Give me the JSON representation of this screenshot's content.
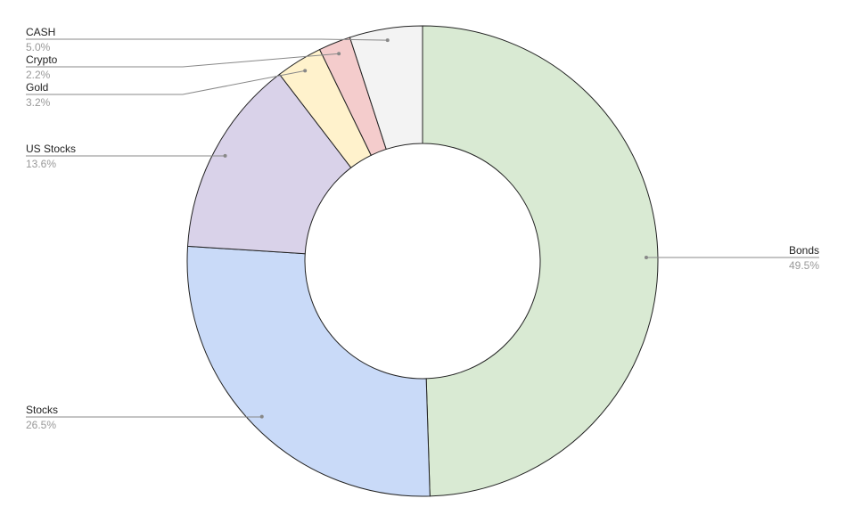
{
  "chart_data": {
    "type": "donut",
    "categories": [
      "Bonds",
      "Stocks",
      "US Stocks",
      "Gold",
      "Crypto",
      "CASH"
    ],
    "values": [
      49.5,
      26.5,
      13.6,
      3.2,
      2.2,
      5.0
    ],
    "value_labels": [
      "49.5%",
      "26.5%",
      "13.6%",
      "3.2%",
      "2.2%",
      "5.0%"
    ],
    "colors": [
      "#d9ead3",
      "#c9daf8",
      "#d9d2e9",
      "#fff2cc",
      "#f4cccc",
      "#f3f3f3"
    ]
  }
}
